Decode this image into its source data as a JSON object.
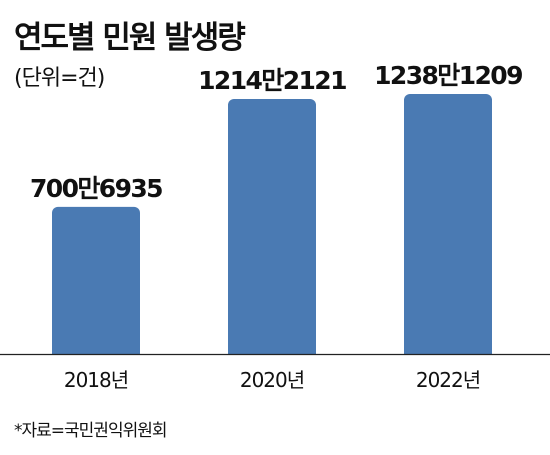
{
  "chart_data": {
    "type": "bar",
    "title": "연도별 민원 발생량",
    "unit": "(단위=건)",
    "categories": [
      "2018년",
      "2020년",
      "2022년"
    ],
    "values": [
      7006935,
      12142121,
      12381209
    ],
    "data_labels": [
      "700만6935",
      "1214만2121",
      "1238만1209"
    ],
    "ylim": [
      0,
      14000000
    ],
    "bar_color": "#4a7ab3",
    "grid": false,
    "legend": "none",
    "source": "*자료=국민권익위원회"
  }
}
